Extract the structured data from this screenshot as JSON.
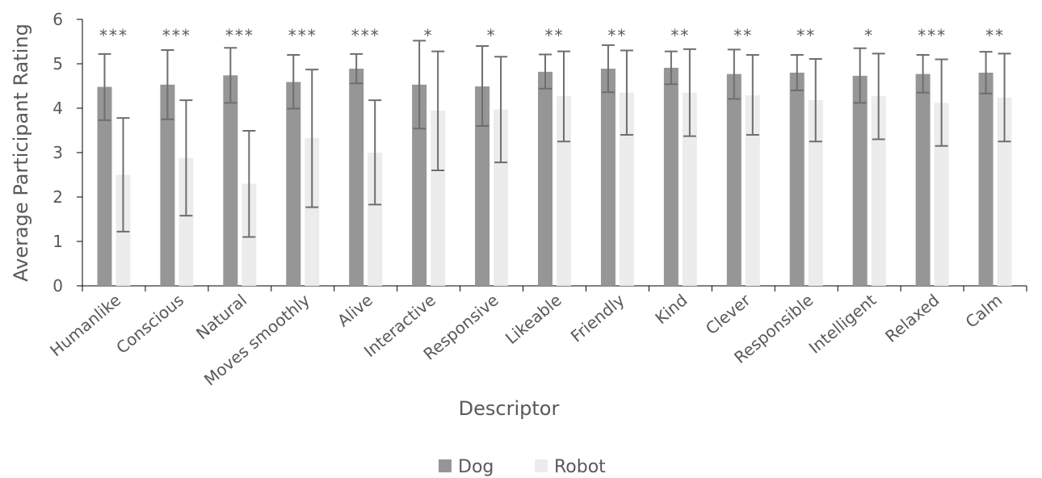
{
  "chart_data": {
    "type": "bar",
    "xlabel": "Descriptor",
    "ylabel": "Average Participant Rating",
    "ylim": [
      0,
      6
    ],
    "yticks": [
      0,
      1,
      2,
      3,
      4,
      5,
      6
    ],
    "grid": false,
    "legend_position": "bottom-center",
    "categories": [
      "Humanlike",
      "Conscious",
      "Natural",
      "Moves smoothly",
      "Alive",
      "Interactive",
      "Responsive",
      "Likeable",
      "Friendly",
      "Kind",
      "Clever",
      "Responsible",
      "Intelligent",
      "Relaxed",
      "Calm"
    ],
    "significance": [
      "***",
      "***",
      "***",
      "***",
      "***",
      "*",
      "*",
      "**",
      "**",
      "**",
      "**",
      "**",
      "*",
      "***",
      "**"
    ],
    "series": [
      {
        "name": "Dog",
        "color": "#969696",
        "values": [
          4.48,
          4.53,
          4.74,
          4.59,
          4.89,
          4.53,
          4.49,
          4.82,
          4.89,
          4.91,
          4.77,
          4.8,
          4.73,
          4.77,
          4.8
        ],
        "error_low": [
          3.73,
          3.75,
          4.12,
          3.99,
          4.56,
          3.54,
          3.6,
          4.44,
          4.36,
          4.54,
          4.21,
          4.4,
          4.12,
          4.35,
          4.33
        ],
        "error_high": [
          5.22,
          5.31,
          5.36,
          5.2,
          5.22,
          5.52,
          5.4,
          5.21,
          5.42,
          5.28,
          5.32,
          5.2,
          5.35,
          5.2,
          5.27
        ]
      },
      {
        "name": "Robot",
        "color": "#ececec",
        "values": [
          2.5,
          2.88,
          2.3,
          3.33,
          3.0,
          3.95,
          3.97,
          4.27,
          4.35,
          4.35,
          4.29,
          4.18,
          4.27,
          4.12,
          4.24
        ],
        "error_low": [
          1.22,
          1.58,
          1.1,
          1.77,
          1.83,
          2.6,
          2.78,
          3.25,
          3.4,
          3.37,
          3.4,
          3.25,
          3.3,
          3.15,
          3.25
        ],
        "error_high": [
          3.78,
          4.18,
          3.49,
          4.87,
          4.18,
          5.28,
          5.16,
          5.28,
          5.3,
          5.33,
          5.2,
          5.11,
          5.23,
          5.1,
          5.23
        ]
      }
    ]
  }
}
